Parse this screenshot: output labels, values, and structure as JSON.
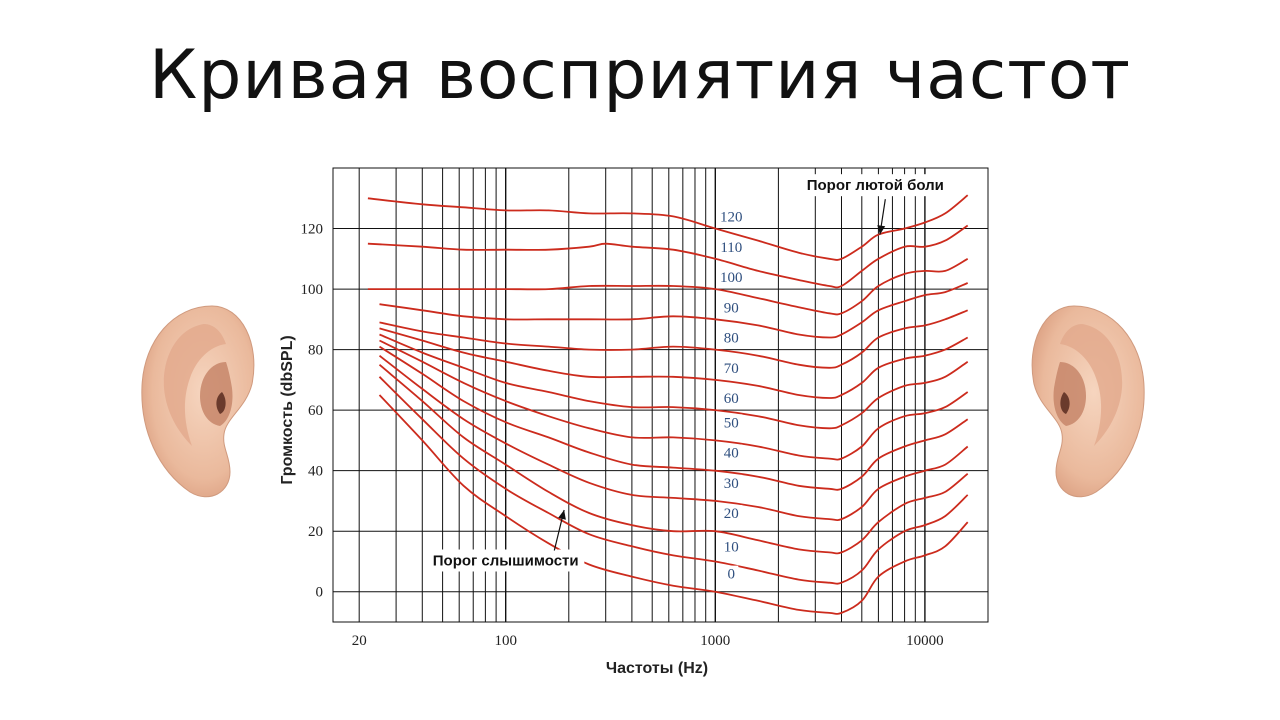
{
  "slide": {
    "title": "Кривая восприятия частот"
  },
  "chart_data": {
    "type": "line",
    "title": "",
    "xlabel": "Частоты (Hz)",
    "ylabel": "Громкость  (dbSPL)",
    "xscale": "log",
    "xlim": [
      15,
      20000
    ],
    "ylim": [
      -10,
      140
    ],
    "grid": true,
    "x_ticks": [
      20,
      100,
      1000,
      10000
    ],
    "x_tick_labels": [
      "20",
      "100",
      "1000",
      "10000"
    ],
    "y_ticks": [
      0,
      20,
      40,
      60,
      80,
      100,
      120
    ],
    "y_tick_labels": [
      "0",
      "20",
      "40",
      "60",
      "80",
      "100",
      "120"
    ],
    "series": [
      {
        "name": "0",
        "label_x": 1000,
        "label_y": 3,
        "points": [
          [
            25,
            65
          ],
          [
            40,
            50
          ],
          [
            63,
            35
          ],
          [
            100,
            25
          ],
          [
            160,
            16
          ],
          [
            250,
            9
          ],
          [
            400,
            5
          ],
          [
            630,
            2
          ],
          [
            1000,
            0
          ],
          [
            1600,
            -3
          ],
          [
            2500,
            -6
          ],
          [
            3500,
            -7
          ],
          [
            4000,
            -7
          ],
          [
            5000,
            -3
          ],
          [
            6000,
            5
          ],
          [
            8000,
            10
          ],
          [
            10000,
            12
          ],
          [
            12500,
            15
          ],
          [
            16000,
            23
          ]
        ]
      },
      {
        "name": "10",
        "label_x": 1000,
        "label_y": 12,
        "points": [
          [
            25,
            71
          ],
          [
            40,
            57
          ],
          [
            63,
            44
          ],
          [
            100,
            34
          ],
          [
            160,
            26
          ],
          [
            250,
            19
          ],
          [
            400,
            15
          ],
          [
            630,
            12
          ],
          [
            1000,
            10
          ],
          [
            1600,
            7
          ],
          [
            2500,
            4
          ],
          [
            3500,
            3
          ],
          [
            4000,
            3
          ],
          [
            5000,
            7
          ],
          [
            6000,
            14
          ],
          [
            8000,
            20
          ],
          [
            10000,
            22
          ],
          [
            12500,
            25
          ],
          [
            16000,
            32
          ]
        ]
      },
      {
        "name": "20",
        "label_x": 1000,
        "label_y": 23,
        "points": [
          [
            25,
            75
          ],
          [
            40,
            63
          ],
          [
            63,
            51
          ],
          [
            100,
            42
          ],
          [
            160,
            33
          ],
          [
            250,
            26
          ],
          [
            400,
            22
          ],
          [
            630,
            20
          ],
          [
            1000,
            20
          ],
          [
            1600,
            17
          ],
          [
            2500,
            14
          ],
          [
            3500,
            13
          ],
          [
            4000,
            13
          ],
          [
            5000,
            17
          ],
          [
            6000,
            23
          ],
          [
            8000,
            29
          ],
          [
            10000,
            31
          ],
          [
            12500,
            33
          ],
          [
            16000,
            39
          ]
        ]
      },
      {
        "name": "30",
        "label_x": 1000,
        "label_y": 33,
        "points": [
          [
            25,
            78
          ],
          [
            40,
            67
          ],
          [
            63,
            57
          ],
          [
            100,
            49
          ],
          [
            160,
            42
          ],
          [
            250,
            36
          ],
          [
            400,
            32
          ],
          [
            630,
            31
          ],
          [
            1000,
            30
          ],
          [
            1600,
            28
          ],
          [
            2500,
            25
          ],
          [
            3500,
            24
          ],
          [
            4000,
            24
          ],
          [
            5000,
            28
          ],
          [
            6000,
            34
          ],
          [
            8000,
            38
          ],
          [
            10000,
            40
          ],
          [
            12500,
            42
          ],
          [
            16000,
            48
          ]
        ]
      },
      {
        "name": "40",
        "label_x": 1000,
        "label_y": 43,
        "points": [
          [
            25,
            81
          ],
          [
            40,
            72
          ],
          [
            63,
            63
          ],
          [
            100,
            56
          ],
          [
            160,
            51
          ],
          [
            250,
            46
          ],
          [
            400,
            42
          ],
          [
            630,
            41
          ],
          [
            1000,
            40
          ],
          [
            1600,
            38
          ],
          [
            2500,
            35
          ],
          [
            3500,
            34
          ],
          [
            4000,
            34
          ],
          [
            5000,
            38
          ],
          [
            6000,
            44
          ],
          [
            8000,
            48
          ],
          [
            10000,
            50
          ],
          [
            12500,
            52
          ],
          [
            16000,
            57
          ]
        ]
      },
      {
        "name": "50",
        "label_x": 1000,
        "label_y": 53,
        "points": [
          [
            25,
            83
          ],
          [
            40,
            76
          ],
          [
            63,
            69
          ],
          [
            100,
            63
          ],
          [
            160,
            58
          ],
          [
            250,
            54
          ],
          [
            400,
            51
          ],
          [
            630,
            51
          ],
          [
            1000,
            50
          ],
          [
            1600,
            48
          ],
          [
            2500,
            45
          ],
          [
            3500,
            44
          ],
          [
            4000,
            44
          ],
          [
            5000,
            48
          ],
          [
            6000,
            54
          ],
          [
            8000,
            58
          ],
          [
            10000,
            59
          ],
          [
            12500,
            61
          ],
          [
            16000,
            66
          ]
        ]
      },
      {
        "name": "60",
        "label_x": 1000,
        "label_y": 61,
        "points": [
          [
            25,
            85
          ],
          [
            40,
            79
          ],
          [
            63,
            74
          ],
          [
            100,
            69
          ],
          [
            160,
            66
          ],
          [
            250,
            63
          ],
          [
            400,
            61
          ],
          [
            630,
            61
          ],
          [
            1000,
            60
          ],
          [
            1600,
            58
          ],
          [
            2500,
            55
          ],
          [
            3500,
            54
          ],
          [
            4000,
            55
          ],
          [
            5000,
            59
          ],
          [
            6000,
            64
          ],
          [
            8000,
            68
          ],
          [
            10000,
            69
          ],
          [
            12500,
            71
          ],
          [
            16000,
            76
          ]
        ]
      },
      {
        "name": "70",
        "label_x": 1000,
        "label_y": 71,
        "points": [
          [
            25,
            87
          ],
          [
            40,
            83
          ],
          [
            63,
            79
          ],
          [
            100,
            76
          ],
          [
            160,
            73
          ],
          [
            250,
            71
          ],
          [
            400,
            71
          ],
          [
            630,
            71
          ],
          [
            1000,
            70
          ],
          [
            1600,
            68
          ],
          [
            2500,
            65
          ],
          [
            3500,
            64
          ],
          [
            4000,
            65
          ],
          [
            5000,
            69
          ],
          [
            6000,
            74
          ],
          [
            8000,
            77
          ],
          [
            10000,
            78
          ],
          [
            12500,
            80
          ],
          [
            16000,
            84
          ]
        ]
      },
      {
        "name": "80",
        "label_x": 1000,
        "label_y": 81,
        "points": [
          [
            25,
            89
          ],
          [
            40,
            86
          ],
          [
            63,
            84
          ],
          [
            100,
            82
          ],
          [
            160,
            81
          ],
          [
            250,
            80
          ],
          [
            400,
            80
          ],
          [
            630,
            81
          ],
          [
            1000,
            80
          ],
          [
            1600,
            78
          ],
          [
            2500,
            75
          ],
          [
            3500,
            74
          ],
          [
            4000,
            75
          ],
          [
            5000,
            79
          ],
          [
            6000,
            84
          ],
          [
            8000,
            87
          ],
          [
            10000,
            88
          ],
          [
            12500,
            90
          ],
          [
            16000,
            93
          ]
        ]
      },
      {
        "name": "90",
        "label_x": 1000,
        "label_y": 91,
        "points": [
          [
            25,
            95
          ],
          [
            40,
            93
          ],
          [
            63,
            91
          ],
          [
            100,
            90
          ],
          [
            160,
            90
          ],
          [
            250,
            90
          ],
          [
            400,
            90
          ],
          [
            630,
            91
          ],
          [
            1000,
            90
          ],
          [
            1600,
            88
          ],
          [
            2500,
            85
          ],
          [
            3500,
            84
          ],
          [
            4000,
            85
          ],
          [
            5000,
            89
          ],
          [
            6000,
            93
          ],
          [
            8000,
            96
          ],
          [
            10000,
            98
          ],
          [
            12500,
            99
          ],
          [
            16000,
            102
          ]
        ]
      },
      {
        "name": "100",
        "label_x": 1000,
        "label_y": 101,
        "points": [
          [
            22,
            100
          ],
          [
            40,
            100
          ],
          [
            63,
            100
          ],
          [
            100,
            100
          ],
          [
            160,
            100
          ],
          [
            250,
            101
          ],
          [
            400,
            101
          ],
          [
            630,
            101
          ],
          [
            1000,
            100
          ],
          [
            1600,
            97
          ],
          [
            2500,
            94
          ],
          [
            3500,
            92
          ],
          [
            4000,
            92
          ],
          [
            5000,
            96
          ],
          [
            6000,
            101
          ],
          [
            8000,
            105
          ],
          [
            10000,
            106
          ],
          [
            12500,
            106
          ],
          [
            16000,
            110
          ]
        ]
      },
      {
        "name": "110",
        "label_x": 1000,
        "label_y": 111,
        "points": [
          [
            22,
            115
          ],
          [
            40,
            114
          ],
          [
            63,
            113
          ],
          [
            100,
            113
          ],
          [
            160,
            113
          ],
          [
            250,
            114
          ],
          [
            300,
            115
          ],
          [
            400,
            114
          ],
          [
            630,
            113
          ],
          [
            1000,
            110
          ],
          [
            1600,
            106
          ],
          [
            2500,
            103
          ],
          [
            3500,
            101
          ],
          [
            4000,
            101
          ],
          [
            5000,
            106
          ],
          [
            6000,
            110
          ],
          [
            8000,
            114
          ],
          [
            10000,
            114
          ],
          [
            12500,
            116
          ],
          [
            16000,
            121
          ]
        ]
      },
      {
        "name": "120",
        "label_x": 1000,
        "label_y": 121,
        "points": [
          [
            22,
            130
          ],
          [
            40,
            128
          ],
          [
            63,
            127
          ],
          [
            100,
            126
          ],
          [
            160,
            126
          ],
          [
            250,
            125
          ],
          [
            400,
            125
          ],
          [
            630,
            124
          ],
          [
            1000,
            120
          ],
          [
            1600,
            116
          ],
          [
            2500,
            112
          ],
          [
            3500,
            110
          ],
          [
            4000,
            110
          ],
          [
            5000,
            114
          ],
          [
            6000,
            118
          ],
          [
            8000,
            120
          ],
          [
            10000,
            122
          ],
          [
            12500,
            125
          ],
          [
            16000,
            131
          ]
        ]
      }
    ],
    "annotations": [
      {
        "text": "Порог лютой боли",
        "box_x": 5800,
        "box_y": 133,
        "arrow_to_x": 6100,
        "arrow_to_y": 118
      },
      {
        "text": "Порог слышимости",
        "box_x": 100,
        "box_y": 9,
        "arrow_to_x": 190,
        "arrow_to_y": 27
      }
    ],
    "colors": {
      "curve": "#cc2b1d",
      "curve_label": "#2f4f7f",
      "grid": "#111111",
      "axis_text": "#222222"
    }
  }
}
